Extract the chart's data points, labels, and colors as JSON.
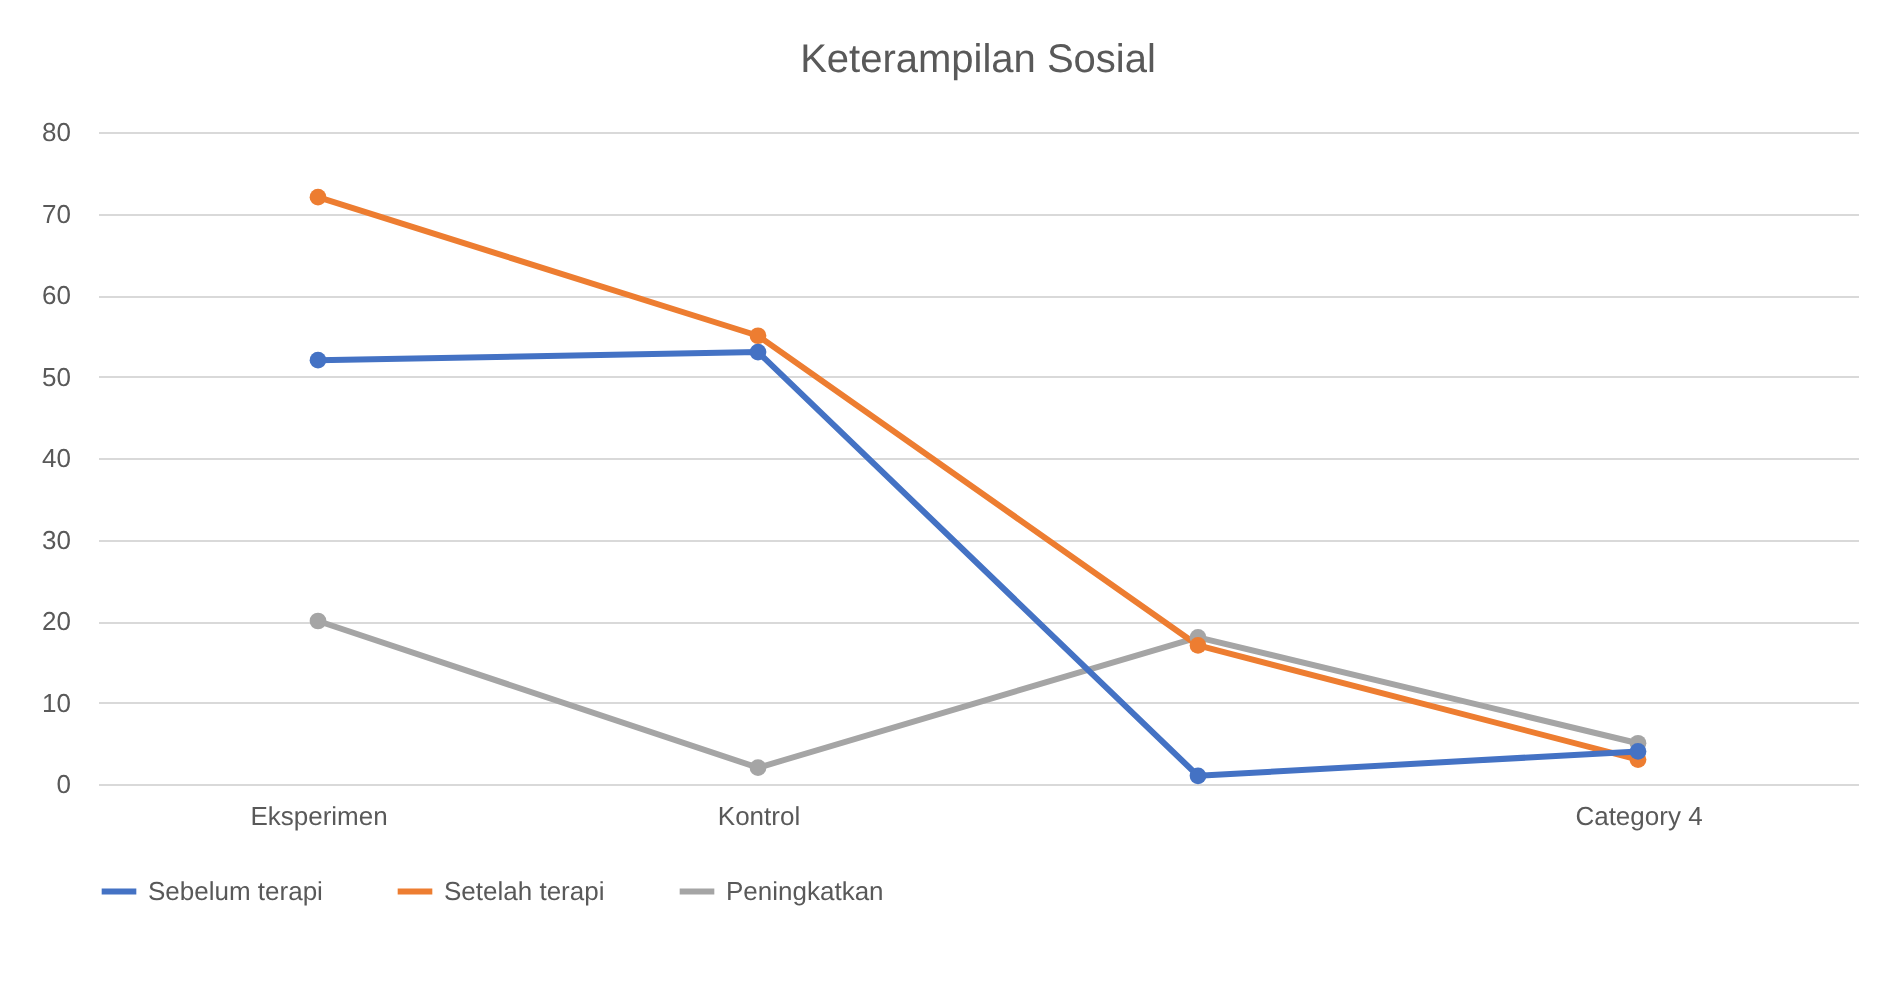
{
  "chart_data": {
    "type": "line",
    "title": "Keterampilan Sosial",
    "categories": [
      "Eksperimen",
      "Kontrol",
      null,
      "Category 4"
    ],
    "series": [
      {
        "name": "Sebelum terapi",
        "color": "#4472c4",
        "values": [
          52,
          53,
          1,
          4
        ]
      },
      {
        "name": "Setelah terapi",
        "color": "#ed7d31",
        "values": [
          72,
          55,
          17,
          3
        ]
      },
      {
        "name": "Peningkatkan",
        "color": "#a5a5a5",
        "values": [
          20,
          2,
          18,
          5
        ]
      }
    ],
    "ylim": [
      0,
      80
    ],
    "yticks": [
      0,
      10,
      20,
      30,
      40,
      50,
      60,
      70,
      80
    ],
    "grid": "y",
    "legend": "bottom",
    "marker": "circle",
    "line_style": "solid"
  }
}
